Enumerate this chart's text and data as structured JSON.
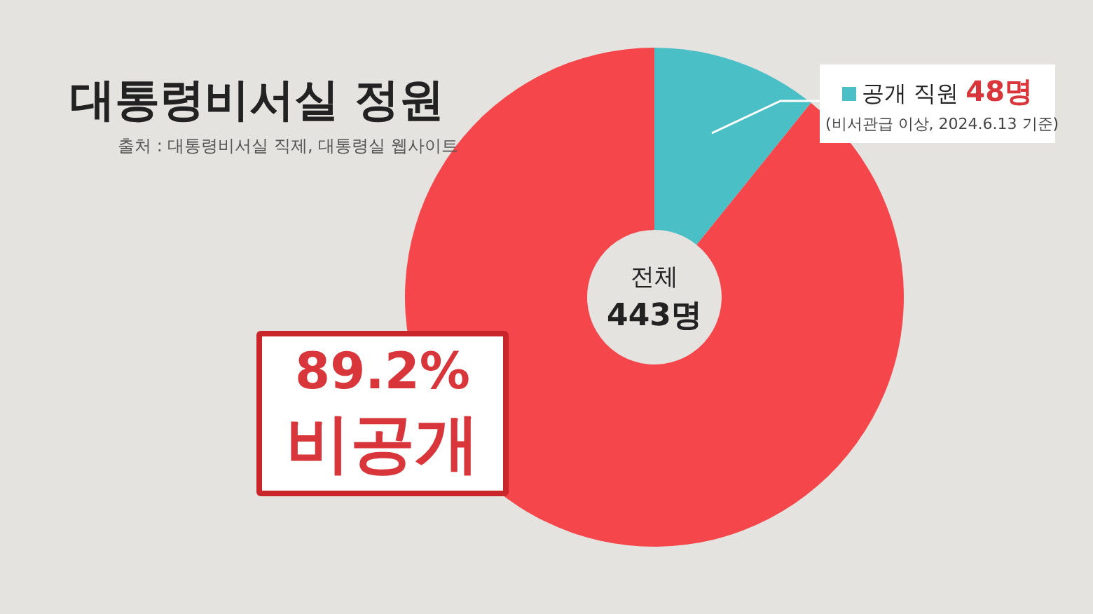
{
  "chart_data": {
    "type": "donut",
    "title": "대통령비서실 정원",
    "categories": [
      "공개 직원",
      "비공개"
    ],
    "values": [
      10.8,
      89.2
    ],
    "colors": [
      "#4bbfc6",
      "#f5474b"
    ],
    "value_labels": [
      null,
      "89.2%"
    ],
    "annotations": [
      "출처 : 대통령비서실 직제, 대통령실 웹사이트",
      "전체 443명",
      "(비서관급 이상, 2024.6.13 기준)",
      "48명"
    ]
  }
}
